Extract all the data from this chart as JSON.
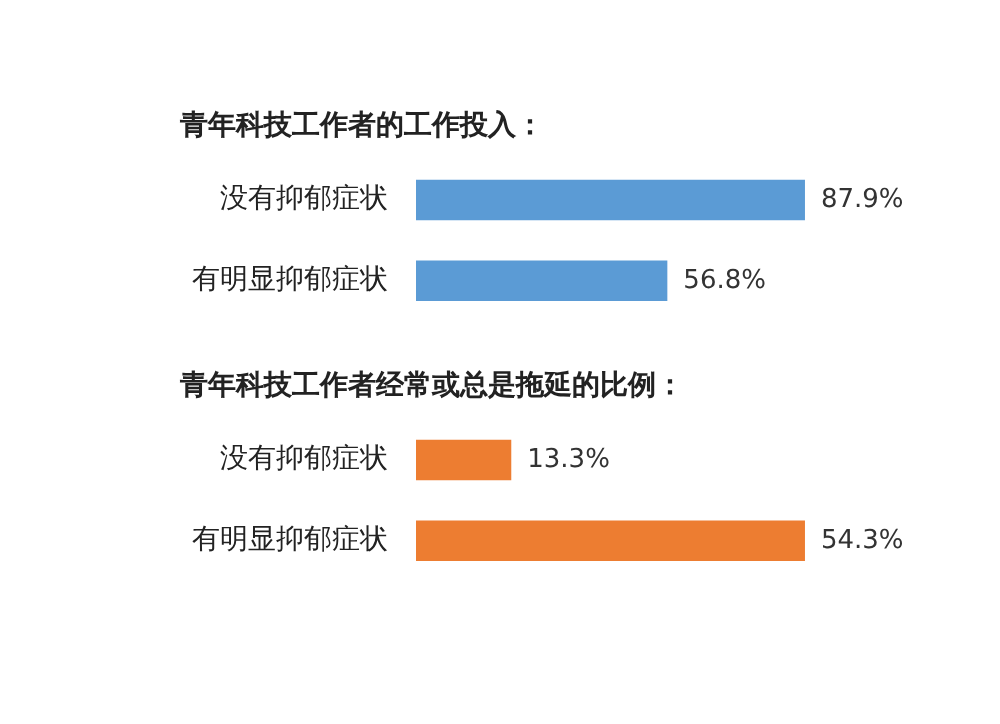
{
  "chart_data": [
    {
      "type": "bar",
      "orientation": "horizontal",
      "title": "青年科技工作者的工作投入：",
      "categories": [
        "没有抑郁症状",
        "有明显抑郁症状"
      ],
      "series": [
        {
          "color": "#5b9bd5",
          "values": [
            87.9,
            56.8
          ],
          "value_labels": [
            "87.9%",
            "56.8%"
          ]
        }
      ],
      "legend": false
    },
    {
      "type": "bar",
      "orientation": "horizontal",
      "title": "青年科技工作者经常或总是拖延的比例：",
      "categories": [
        "没有抑郁症状",
        "有明显抑郁症状"
      ],
      "series": [
        {
          "color": "#ed7d31",
          "values": [
            13.3,
            54.3
          ],
          "value_labels": [
            "13.3%",
            "54.3%"
          ]
        }
      ],
      "legend": false
    }
  ]
}
